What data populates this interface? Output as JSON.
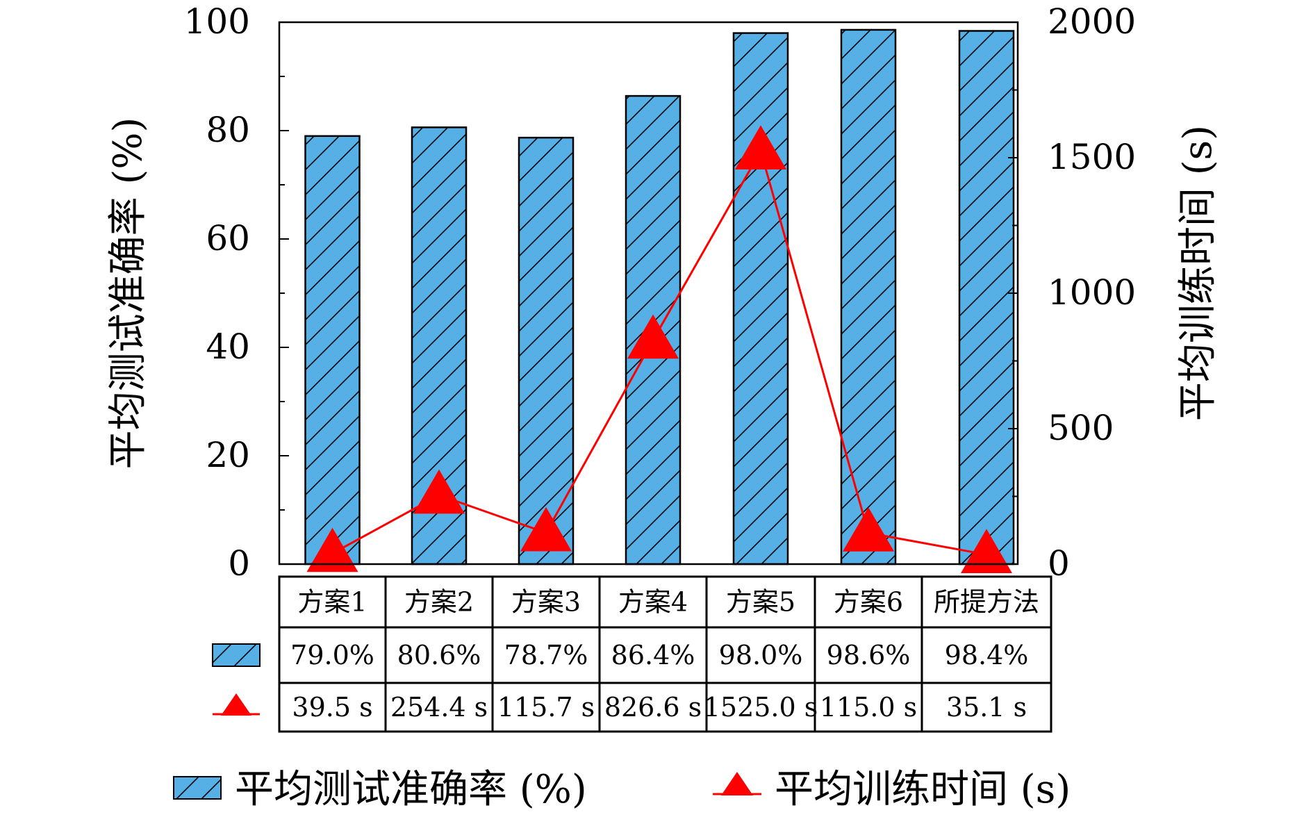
{
  "chart_data": {
    "type": "bar",
    "categories": [
      "方案1",
      "方案2",
      "方案3",
      "方案4",
      "方案5",
      "方案6",
      "所提方法"
    ],
    "series": [
      {
        "name": "平均测试准确率 (%)",
        "type": "bar",
        "axis": "left",
        "values": [
          79.0,
          80.6,
          78.7,
          86.4,
          98.0,
          98.6,
          98.4
        ],
        "labels": [
          "79.0%",
          "80.6%",
          "78.7%",
          "86.4%",
          "98.0%",
          "98.6%",
          "98.4%"
        ],
        "color": "#56B0E6",
        "hatch": "diagonal"
      },
      {
        "name": "平均训练时间 (s)",
        "type": "line",
        "axis": "right",
        "marker": "triangle",
        "values": [
          39.5,
          254.4,
          115.7,
          826.6,
          1525.0,
          115.0,
          35.1
        ],
        "labels": [
          "39.5 s",
          "254.4 s",
          "115.7 s",
          "826.6 s",
          "1525.0 s",
          "115.0 s",
          "35.1 s"
        ],
        "color": "#FF0000"
      }
    ],
    "ylabel": "平均测试准确率 (%)",
    "ylabel_right": "平均训练时间 (s)",
    "ylim": [
      0,
      100
    ],
    "ylim_right": [
      0,
      2000
    ],
    "yticks": [
      "0",
      "20",
      "40",
      "60",
      "80",
      "100"
    ],
    "yticks_right": [
      "0",
      "500",
      "1000",
      "1500",
      "2000"
    ],
    "legend": [
      "平均测试准确率 (%)",
      "平均训练时间 (s)"
    ],
    "legend_position": "bottom",
    "data_table": true,
    "grid": false
  }
}
